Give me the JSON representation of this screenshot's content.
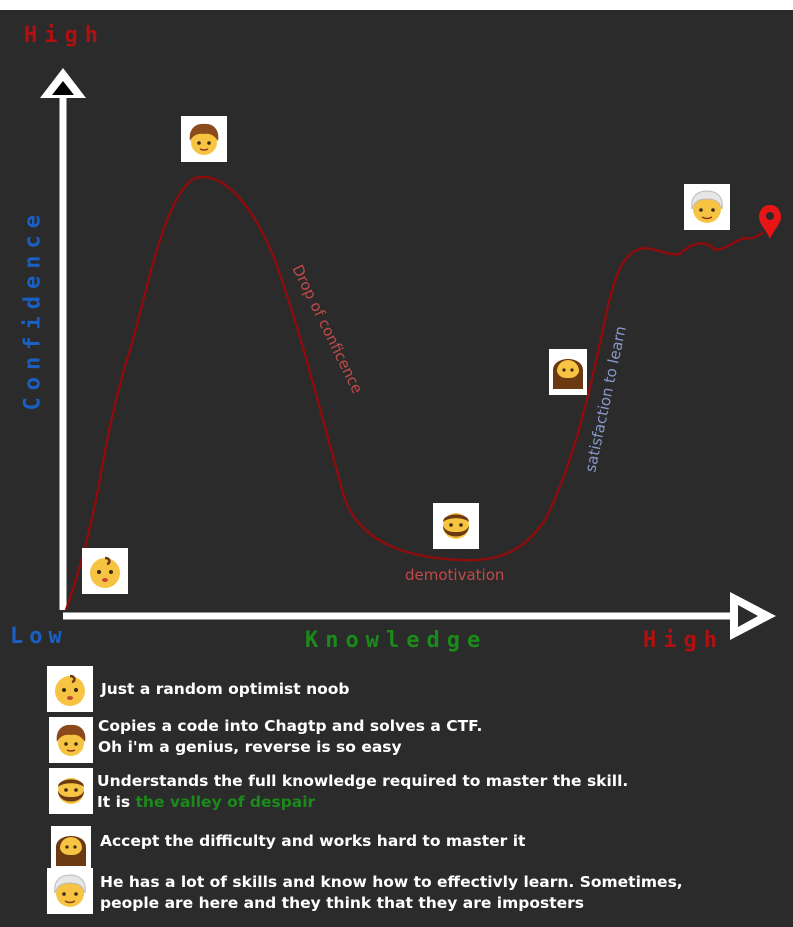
{
  "axes": {
    "y_high": "High",
    "y_label": "Confidence",
    "x_low": "Low",
    "x_label": "Knowledge",
    "x_high": "High"
  },
  "curve_labels": {
    "drop": "Drop of conficence",
    "valley": "demotivation",
    "climb": "satisfaction to learn"
  },
  "colors": {
    "background": "#2b2b2b",
    "axis": "#ffffff",
    "curve": "#8b0d0d",
    "high_text": "#b01010",
    "blue_text": "#1a5fc4",
    "green_text": "#1a8a1a"
  },
  "stages": [
    {
      "icon": "baby-icon",
      "lines": [
        "Just a random optimist noob"
      ]
    },
    {
      "icon": "curly-hair-person-icon",
      "lines": [
        "Copies a code into Chagtp and solves a CTF.",
        "Oh i'm a genius, reverse is so easy"
      ]
    },
    {
      "icon": "bearded-person-icon",
      "line1": "Understands the full knowledge required to master the skill.",
      "line2_prefix": "It is ",
      "line2_highlight": "the valley of despair"
    },
    {
      "icon": "long-haired-bearded-person-icon",
      "lines": [
        "Accept the difficulty and works hard to master it"
      ]
    },
    {
      "icon": "old-person-icon",
      "lines": [
        "He has a lot of skills and know how to effectivly learn. Sometimes,",
        "people are here and they think that they are imposters"
      ]
    }
  ],
  "goal_marker": "location-pin-icon"
}
